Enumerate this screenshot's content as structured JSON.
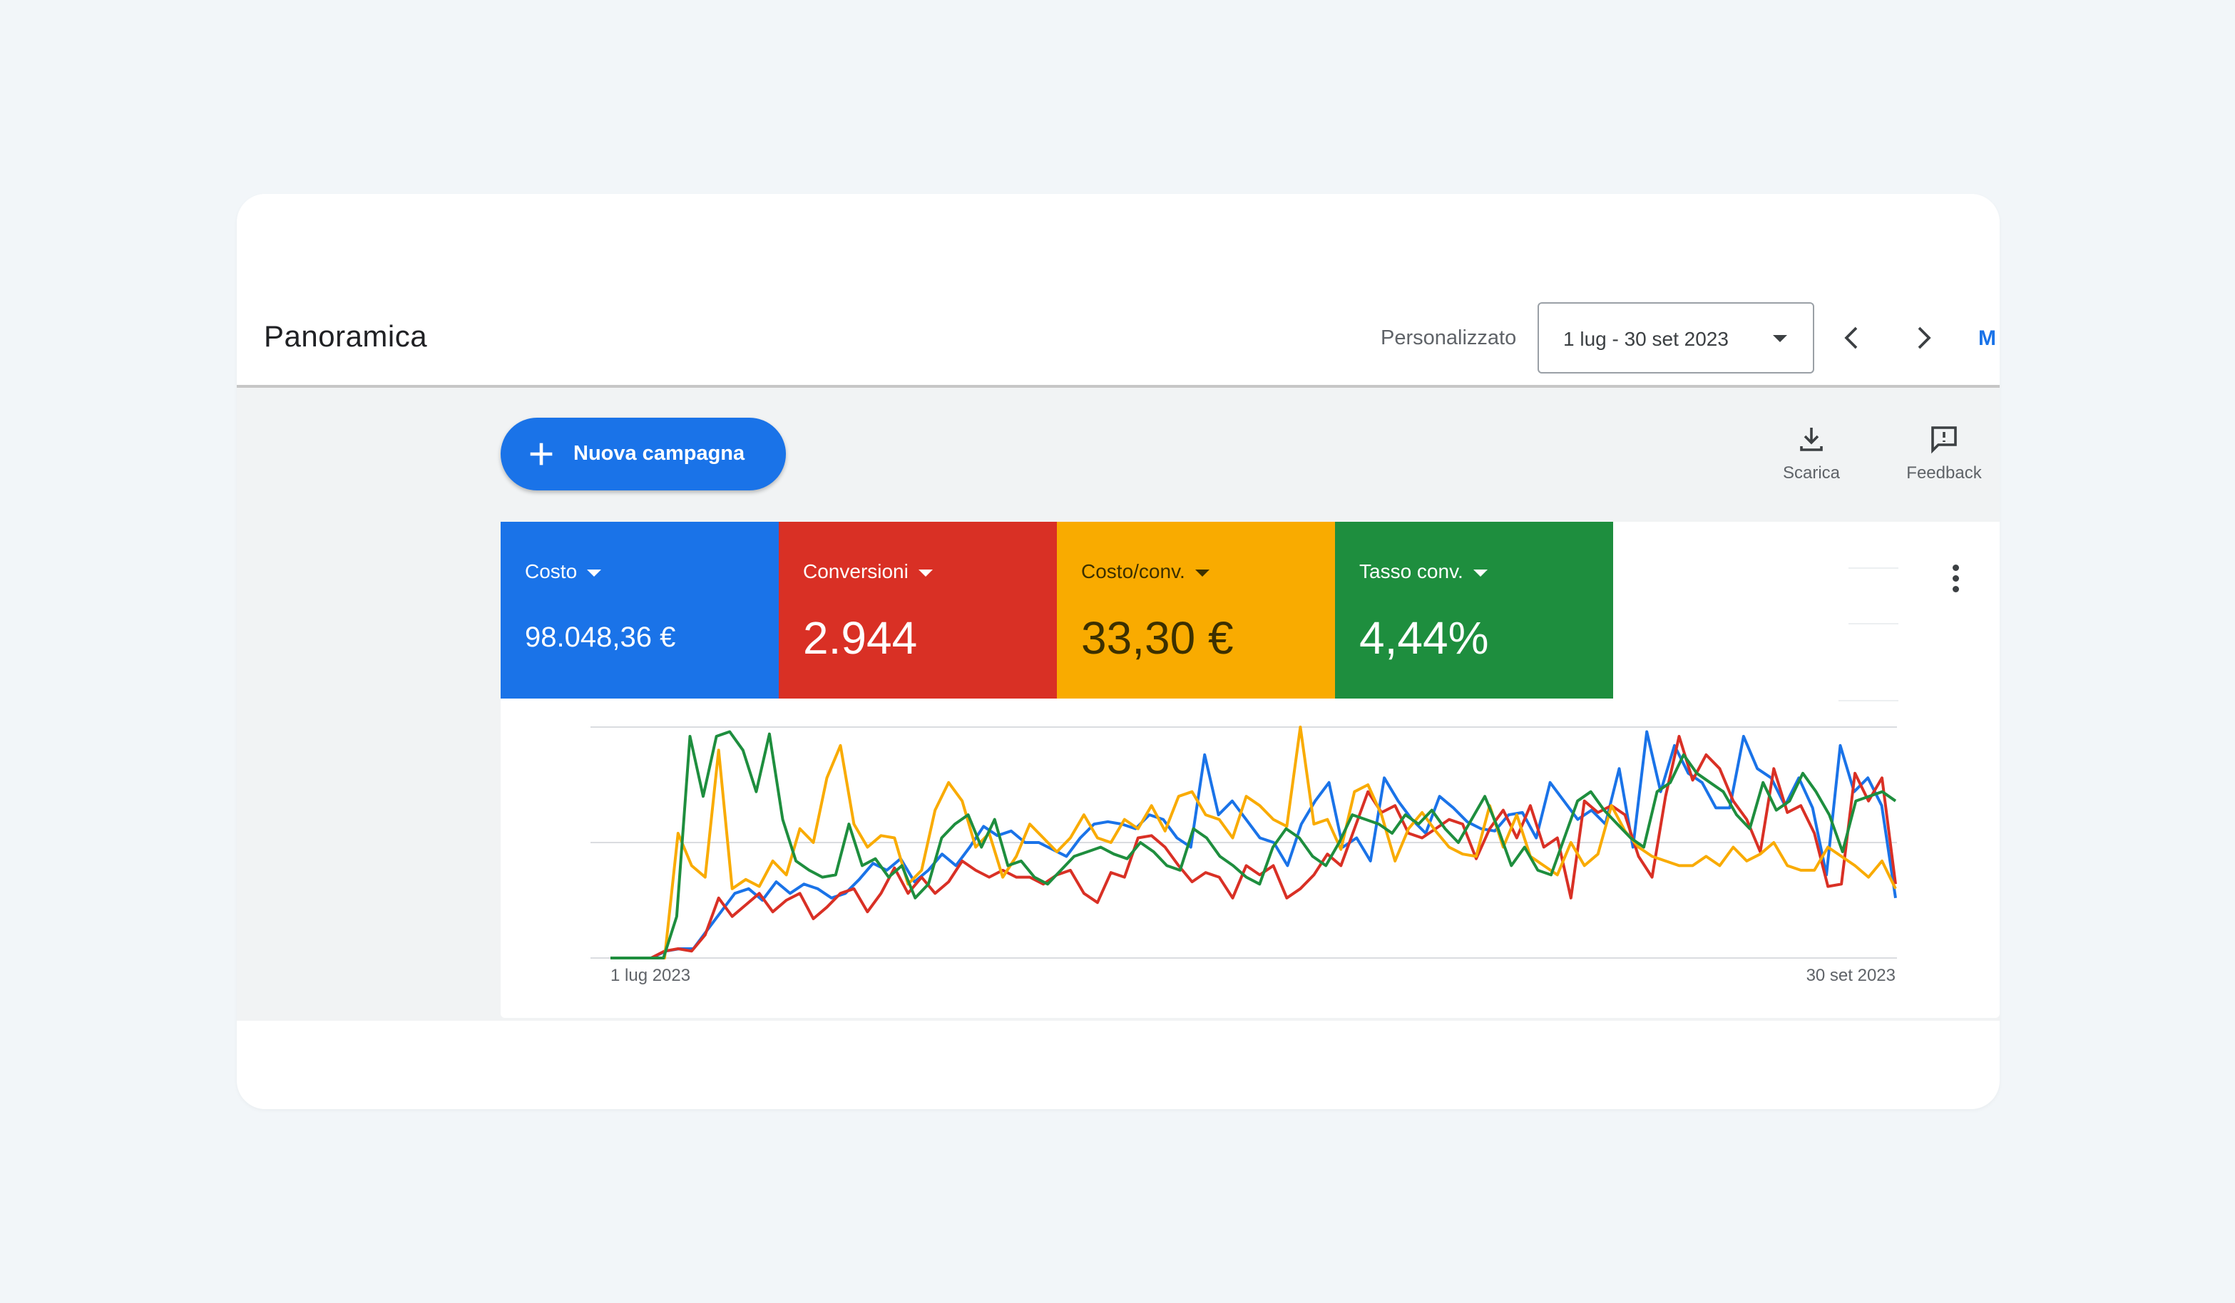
{
  "header": {
    "title": "Panoramica",
    "period_label": "Personalizzato",
    "date_range": "1 lug - 30 set 2023",
    "more_link": "M"
  },
  "actions": {
    "new_campaign_label": "Nuova campagna",
    "download_label": "Scarica",
    "feedback_label": "Feedback"
  },
  "metrics": [
    {
      "label": "Costo",
      "value": "98.048,36 €",
      "color": "#1a73e8"
    },
    {
      "label": "Conversioni",
      "value": "2.944",
      "color": "#d93025"
    },
    {
      "label": "Costo/conv.",
      "value": "33,30 €",
      "color": "#f9ab00"
    },
    {
      "label": "Tasso conv.",
      "value": "4,44%",
      "color": "#1e8e3e"
    }
  ],
  "chart_data": {
    "type": "line",
    "x_start_label": "1 lug 2023",
    "x_end_label": "30 set 2023",
    "y_scale": "normalized per series (0 = baseline, 100 = top gridline)",
    "series": [
      {
        "color": "#1a73e8",
        "values": [
          0,
          0,
          0,
          0,
          3,
          4,
          4,
          12,
          20,
          28,
          30,
          25,
          33,
          28,
          32,
          30,
          26,
          28,
          34,
          41,
          38,
          43,
          33,
          38,
          45,
          40,
          48,
          57,
          53,
          55,
          50,
          50,
          47,
          44,
          52,
          58,
          59,
          58,
          56,
          62,
          60,
          52,
          48,
          88,
          62,
          68,
          60,
          52,
          50,
          40,
          58,
          68,
          76,
          48,
          52,
          42,
          78,
          68,
          60,
          54,
          70,
          65,
          59,
          56,
          55,
          62,
          63,
          52,
          76,
          68,
          60,
          64,
          58,
          82,
          48,
          98,
          72,
          92,
          80,
          76,
          65,
          65,
          96,
          82,
          78,
          66,
          78,
          65,
          36,
          92,
          72,
          78,
          66,
          26
        ]
      },
      {
        "color": "#d93025",
        "values": [
          0,
          0,
          0,
          0,
          3,
          4,
          3,
          10,
          26,
          18,
          23,
          28,
          20,
          25,
          28,
          17,
          22,
          28,
          30,
          20,
          28,
          39,
          28,
          35,
          28,
          33,
          42,
          38,
          35,
          38,
          35,
          35,
          32,
          36,
          38,
          28,
          24,
          37,
          35,
          52,
          53,
          48,
          40,
          33,
          37,
          35,
          26,
          40,
          36,
          40,
          26,
          30,
          36,
          45,
          40,
          56,
          72,
          63,
          66,
          54,
          52,
          56,
          60,
          58,
          43,
          56,
          64,
          52,
          66,
          48,
          52,
          26,
          68,
          63,
          66,
          62,
          44,
          35,
          70,
          96,
          77,
          88,
          82,
          68,
          60,
          46,
          82,
          63,
          66,
          54,
          31,
          32,
          80,
          68,
          78,
          32
        ]
      },
      {
        "color": "#f9ab00",
        "values": [
          0,
          0,
          0,
          0,
          0,
          54,
          40,
          35,
          90,
          30,
          34,
          31,
          42,
          36,
          56,
          50,
          78,
          92,
          58,
          48,
          53,
          52,
          32,
          38,
          64,
          76,
          68,
          48,
          54,
          35,
          44,
          58,
          52,
          46,
          52,
          62,
          52,
          50,
          60,
          56,
          66,
          55,
          70,
          72,
          62,
          60,
          52,
          70,
          66,
          60,
          57,
          100,
          58,
          60,
          47,
          72,
          75,
          62,
          42,
          56,
          63,
          55,
          48,
          45,
          44,
          66,
          48,
          62,
          44,
          40,
          36,
          50,
          40,
          45,
          66,
          55,
          48,
          44,
          42,
          40,
          40,
          44,
          40,
          48,
          42,
          45,
          50,
          40,
          38,
          38,
          48,
          44,
          40,
          35,
          42,
          30
        ]
      },
      {
        "color": "#1e8e3e",
        "values": [
          0,
          0,
          0,
          0,
          0,
          18,
          96,
          70,
          96,
          98,
          90,
          72,
          97,
          60,
          42,
          38,
          35,
          36,
          58,
          40,
          43,
          35,
          40,
          26,
          32,
          52,
          58,
          62,
          48,
          60,
          40,
          42,
          35,
          32,
          38,
          44,
          46,
          48,
          45,
          43,
          50,
          46,
          40,
          38,
          56,
          52,
          44,
          40,
          35,
          32,
          48,
          56,
          52,
          44,
          40,
          50,
          62,
          60,
          58,
          54,
          62,
          58,
          64,
          56,
          50,
          60,
          70,
          56,
          40,
          48,
          38,
          36,
          52,
          68,
          72,
          64,
          58,
          52,
          48,
          72,
          76,
          88,
          80,
          76,
          72,
          62,
          56,
          76,
          64,
          68,
          80,
          72,
          62,
          46,
          68,
          70,
          72,
          68
        ]
      }
    ]
  }
}
